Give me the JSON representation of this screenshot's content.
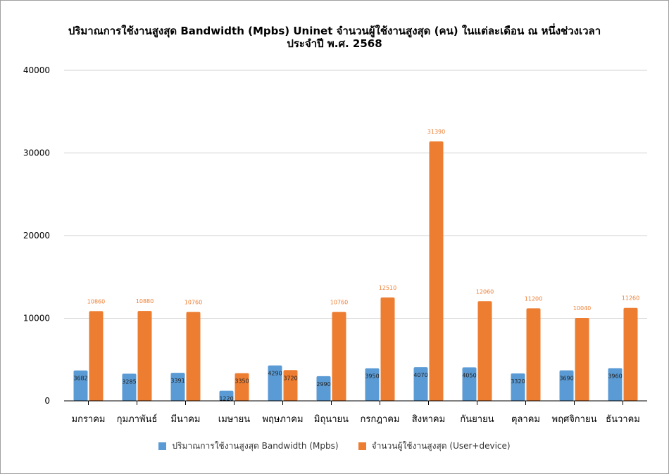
{
  "chart_data": {
    "type": "bar",
    "title_line1": "ปริมาณการใช้งานสูงสุด Bandwidth (Mpbs) Uninet จำนวนผู้ใช้งานสูงสุด (คน) ในแต่ละเดือน ณ หนึ่งช่วงเวลา",
    "title_line2": "ประจำปี พ.ศ. 2568",
    "categories": [
      "มกราคม",
      "กุมภาพันธ์",
      "มีนาคม",
      "เมษายน",
      "พฤษภาคม",
      "มิถุนายน",
      "กรกฎาคม",
      "สิงหาคม",
      "กันยายน",
      "ตุลาคม",
      "พฤศจิกายน",
      "ธันวาคม"
    ],
    "series": [
      {
        "name": "ปริมาณการใช้งานสูงสุด Bandwidth (Mpbs)",
        "color": "#5b9bd5",
        "values": [
          3682,
          3285,
          3391,
          1220,
          4290,
          2990,
          3950,
          4070,
          4050,
          3320,
          3690,
          3960
        ]
      },
      {
        "name": "จำนวนผู้ใช้งานสูงสุด (User+device)",
        "color": "#ed7d31",
        "values": [
          10860,
          10880,
          10760,
          3350,
          3720,
          10760,
          12510,
          31390,
          12060,
          11200,
          10040,
          11260
        ]
      }
    ],
    "yticks": [
      "0",
      "10000",
      "20000",
      "30000",
      "40000"
    ],
    "ylim": [
      0,
      40000
    ],
    "grid": true,
    "legend": "bottom"
  }
}
